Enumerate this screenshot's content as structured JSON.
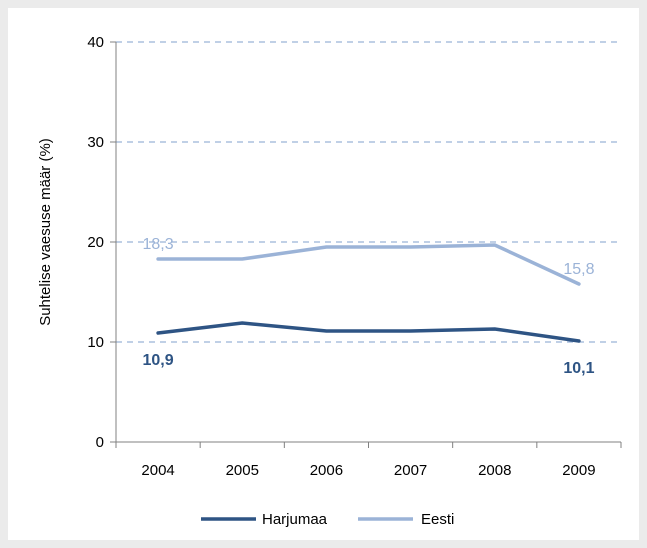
{
  "chart_data": {
    "type": "line",
    "categories": [
      "2004",
      "2005",
      "2006",
      "2007",
      "2008",
      "2009"
    ],
    "series": [
      {
        "name": "Harjumaa",
        "color": "#2e5484",
        "values": [
          10.9,
          11.9,
          11.1,
          11.1,
          11.3,
          10.1
        ]
      },
      {
        "name": "Eesti",
        "color": "#9bb3d7",
        "values": [
          18.3,
          18.3,
          19.5,
          19.5,
          19.7,
          15.8
        ]
      }
    ],
    "ylabel": "Suhtelise vaesuse määr (%)",
    "ylim": [
      0,
      40
    ],
    "yticks": [
      "0",
      "10",
      "20",
      "30",
      "40"
    ],
    "data_labels": [
      {
        "series": 1,
        "index": 0,
        "text": "18,3",
        "position": "above"
      },
      {
        "series": 1,
        "index": 5,
        "text": "15,8",
        "position": "above"
      },
      {
        "series": 0,
        "index": 0,
        "text": "10,9",
        "position": "below",
        "bold": true
      },
      {
        "series": 0,
        "index": 5,
        "text": "10,1",
        "position": "below",
        "bold": true
      }
    ],
    "grid": true,
    "legend_position": "bottom"
  }
}
